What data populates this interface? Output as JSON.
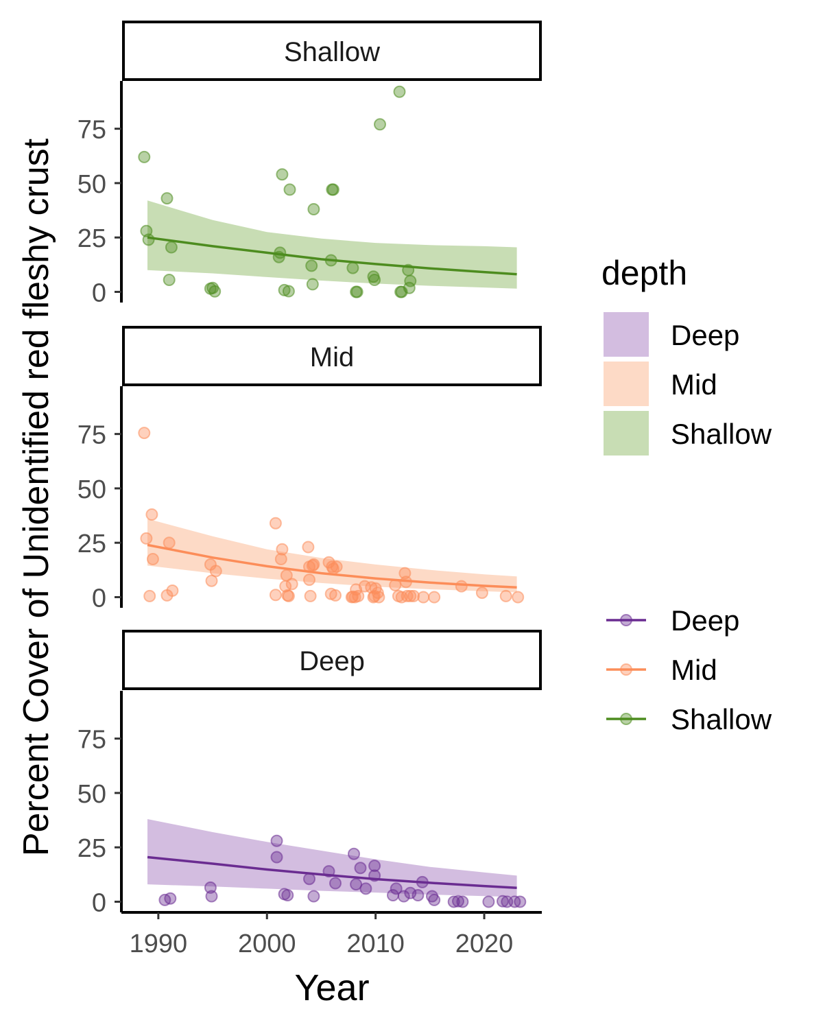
{
  "chart_data": {
    "type": "scatter",
    "xlabel": "Year",
    "ylabel": "Percent Cover of Unidentified red fleshy crust",
    "xlim": [
      1986.6,
      2025.3
    ],
    "ylim": [
      -4.9,
      97.6
    ],
    "x_ticks": [
      "1990",
      "2000",
      "2010",
      "2020"
    ],
    "y_ticks": [
      "0",
      "25",
      "50",
      "75"
    ],
    "grid": false,
    "colors": {
      "Shallow": "#4d8c1f",
      "Mid": "#fc8d59",
      "Deep": "#6a2c91"
    },
    "ribbon_colors": {
      "Shallow": "#c8ddb4",
      "Mid": "#fddac6",
      "Deep": "#d3bde0"
    },
    "legend": {
      "fill_title": "depth",
      "fill_items": [
        "Deep",
        "Mid",
        "Shallow"
      ],
      "line_items": [
        "Deep",
        "Mid",
        "Shallow"
      ]
    },
    "panels": [
      {
        "strip": "Shallow",
        "color_key": "Shallow",
        "points": [
          [
            1988.7,
            62
          ],
          [
            1988.9,
            28
          ],
          [
            1989.1,
            24
          ],
          [
            1990.8,
            43
          ],
          [
            1991.0,
            5.5
          ],
          [
            1991.2,
            20.5
          ],
          [
            1994.8,
            1.5
          ],
          [
            1995.0,
            1.8
          ],
          [
            1995.2,
            0.2
          ],
          [
            2001.1,
            16
          ],
          [
            2001.2,
            18
          ],
          [
            2001.4,
            54
          ],
          [
            2001.6,
            0.8
          ],
          [
            2002.0,
            0.3
          ],
          [
            2002.1,
            47
          ],
          [
            2004.1,
            12
          ],
          [
            2004.2,
            3.5
          ],
          [
            2004.3,
            38
          ],
          [
            2005.9,
            14.5
          ],
          [
            2006.0,
            47
          ],
          [
            2006.1,
            47
          ],
          [
            2007.9,
            11
          ],
          [
            2008.2,
            0
          ],
          [
            2008.3,
            0
          ],
          [
            2009.8,
            7
          ],
          [
            2009.9,
            5.5
          ],
          [
            2010.4,
            77
          ],
          [
            2012.2,
            92
          ],
          [
            2012.3,
            0
          ],
          [
            2012.4,
            0
          ],
          [
            2013.0,
            10
          ],
          [
            2013.1,
            1.8
          ],
          [
            2013.2,
            5
          ]
        ],
        "fit": {
          "x": [
            1989,
            1995,
            2000,
            2005,
            2010,
            2015,
            2020,
            2023
          ],
          "y": [
            25,
            21,
            18,
            15,
            12.8,
            10.8,
            9.1,
            8.1
          ]
        },
        "ribbon": {
          "x": [
            1989,
            1995,
            2000,
            2005,
            2010,
            2015,
            2020,
            2023
          ],
          "lower": [
            10,
            8.5,
            6.8,
            5.2,
            3.8,
            2.8,
            2,
            1.5
          ],
          "upper": [
            42,
            33,
            27.5,
            24.5,
            22.5,
            21.5,
            21,
            20.5
          ]
        }
      },
      {
        "strip": "Mid",
        "color_key": "Mid",
        "points": [
          [
            1988.7,
            75.5
          ],
          [
            1988.9,
            27
          ],
          [
            1989.2,
            0.5
          ],
          [
            1989.4,
            38
          ],
          [
            1989.5,
            17.5
          ],
          [
            1990.8,
            0.8
          ],
          [
            1991.0,
            25
          ],
          [
            1991.3,
            3
          ],
          [
            1994.8,
            15
          ],
          [
            1994.9,
            7.5
          ],
          [
            1995.3,
            12
          ],
          [
            2000.8,
            34
          ],
          [
            2000.8,
            1
          ],
          [
            2001.3,
            17.5
          ],
          [
            2001.4,
            22
          ],
          [
            2001.7,
            5
          ],
          [
            2001.8,
            10
          ],
          [
            2001.9,
            0.8
          ],
          [
            2002.0,
            0.5
          ],
          [
            2002.3,
            6
          ],
          [
            2003.8,
            23
          ],
          [
            2003.9,
            14
          ],
          [
            2003.9,
            8
          ],
          [
            2004.0,
            0.5
          ],
          [
            2004.2,
            14.5
          ],
          [
            2004.3,
            15
          ],
          [
            2005.7,
            16
          ],
          [
            2005.9,
            1.5
          ],
          [
            2006.0,
            14
          ],
          [
            2006.1,
            13
          ],
          [
            2006.3,
            0.8
          ],
          [
            2006.4,
            14
          ],
          [
            2007.8,
            0
          ],
          [
            2007.9,
            0.2
          ],
          [
            2008.1,
            0
          ],
          [
            2008.2,
            3.5
          ],
          [
            2008.4,
            0.5
          ],
          [
            2009.0,
            5
          ],
          [
            2009.6,
            4.5
          ],
          [
            2009.8,
            0
          ],
          [
            2009.9,
            0.5
          ],
          [
            2010.0,
            4
          ],
          [
            2010.2,
            2
          ],
          [
            2010.3,
            0
          ],
          [
            2011.8,
            5.5
          ],
          [
            2012.1,
            0.5
          ],
          [
            2012.4,
            0
          ],
          [
            2012.7,
            11
          ],
          [
            2012.8,
            7
          ],
          [
            2012.9,
            0.5
          ],
          [
            2013.2,
            0.5
          ],
          [
            2013.5,
            0.5
          ],
          [
            2014.4,
            0
          ],
          [
            2015.4,
            0
          ],
          [
            2017.9,
            5
          ],
          [
            2019.8,
            2
          ],
          [
            2022.0,
            0.5
          ],
          [
            2023.1,
            0
          ]
        ],
        "fit": {
          "x": [
            1989,
            1995,
            2000,
            2005,
            2010,
            2015,
            2020,
            2023
          ],
          "y": [
            24,
            18.2,
            14.2,
            11,
            8.6,
            6.7,
            5.2,
            4.5
          ]
        },
        "ribbon": {
          "x": [
            1989,
            1995,
            2000,
            2005,
            2010,
            2015,
            2020,
            2023
          ],
          "lower": [
            14.5,
            11,
            8.5,
            6.5,
            4.8,
            3.6,
            2.7,
            2.2
          ],
          "upper": [
            36,
            28,
            22,
            18,
            15,
            12.5,
            10.5,
            9.5
          ]
        }
      },
      {
        "strip": "Deep",
        "color_key": "Deep",
        "points": [
          [
            1990.6,
            0.8
          ],
          [
            1991.1,
            1.5
          ],
          [
            1994.8,
            6.5
          ],
          [
            1994.9,
            2.5
          ],
          [
            2000.9,
            28
          ],
          [
            2000.9,
            20.5
          ],
          [
            2001.6,
            3.5
          ],
          [
            2001.9,
            3
          ],
          [
            2003.9,
            10.5
          ],
          [
            2004.3,
            2.5
          ],
          [
            2005.7,
            14
          ],
          [
            2006.3,
            8.5
          ],
          [
            2008.0,
            22
          ],
          [
            2008.2,
            8
          ],
          [
            2008.6,
            15.5
          ],
          [
            2009.1,
            6
          ],
          [
            2009.9,
            16.5
          ],
          [
            2009.9,
            12
          ],
          [
            2011.6,
            3
          ],
          [
            2011.9,
            6
          ],
          [
            2012.6,
            2.5
          ],
          [
            2013.2,
            4
          ],
          [
            2013.9,
            3
          ],
          [
            2014.3,
            9
          ],
          [
            2015.2,
            2.5
          ],
          [
            2015.4,
            0.8
          ],
          [
            2017.2,
            0
          ],
          [
            2017.6,
            0.2
          ],
          [
            2018.0,
            0
          ],
          [
            2020.4,
            0
          ],
          [
            2021.7,
            0.2
          ],
          [
            2022.1,
            0
          ],
          [
            2022.8,
            0
          ],
          [
            2023.3,
            0
          ]
        ],
        "fit": {
          "x": [
            1989,
            1995,
            2000,
            2005,
            2010,
            2015,
            2020,
            2023
          ],
          "y": [
            20.5,
            17.5,
            14.8,
            12.5,
            10.4,
            8.7,
            7.2,
            6.4
          ]
        },
        "ribbon": {
          "x": [
            1989,
            1995,
            2000,
            2005,
            2010,
            2015,
            2020,
            2023
          ],
          "lower": [
            8,
            7,
            6,
            5,
            4.2,
            3.3,
            2.6,
            2.2
          ],
          "upper": [
            38,
            32,
            27.5,
            23.5,
            19.5,
            16,
            13.5,
            12
          ]
        }
      }
    ]
  }
}
